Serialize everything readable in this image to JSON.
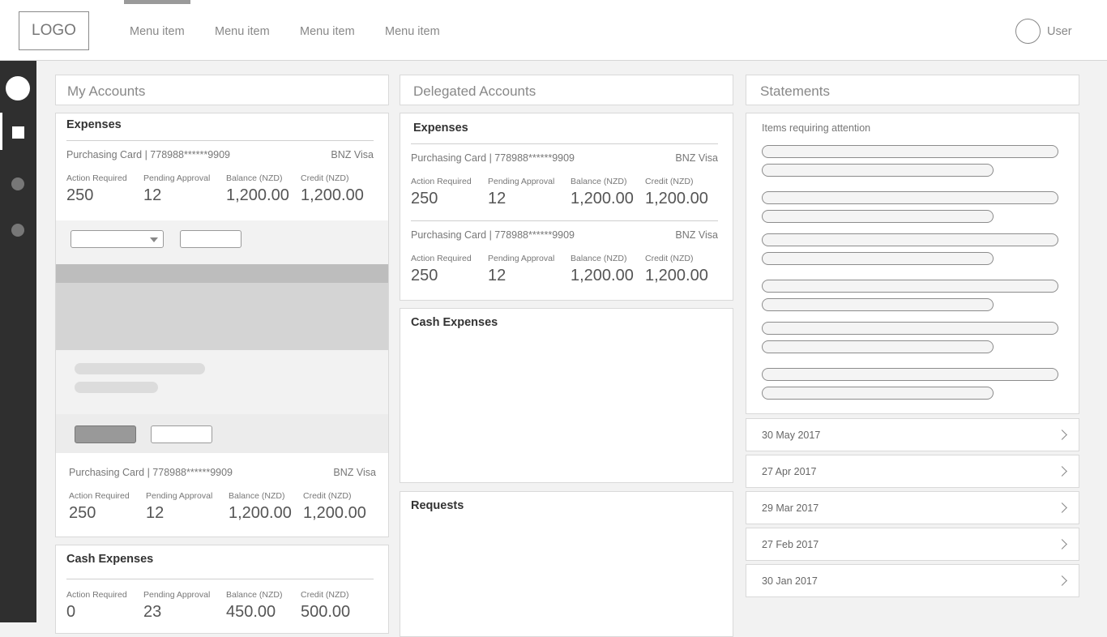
{
  "header": {
    "logo": "LOGO",
    "menu": [
      "Menu item",
      "Menu item",
      "Menu item",
      "Menu item"
    ],
    "user": "User"
  },
  "my_accounts": {
    "title": "My Accounts",
    "expenses": {
      "title": "Expenses",
      "cards": [
        {
          "name": "Purchasing Card | 778988******9909",
          "brand": "BNZ Visa",
          "labels": [
            "Action Required",
            "Pending Approval",
            "Balance (NZD)",
            "Credit (NZD)"
          ],
          "values": [
            "250",
            "12",
            "1,200.00",
            "1,200.00"
          ]
        },
        {
          "name": "Purchasing Card | 778988******9909",
          "brand": "BNZ Visa",
          "labels": [
            "Action Required",
            "Pending Approval",
            "Balance (NZD)",
            "Credit (NZD)"
          ],
          "values": [
            "250",
            "12",
            "1,200.00",
            "1,200.00"
          ]
        }
      ]
    },
    "cash": {
      "title": "Cash Expenses",
      "labels": [
        "Action Required",
        "Pending Approval",
        "Balance (NZD)",
        "Credit (NZD)"
      ],
      "values": [
        "0",
        "23",
        "450.00",
        "500.00"
      ]
    }
  },
  "delegated": {
    "title": "Delegated Accounts",
    "expenses": {
      "title": "Expenses",
      "cards": [
        {
          "name": "Purchasing Card | 778988******9909",
          "brand": "BNZ Visa",
          "labels": [
            "Action Required",
            "Pending Approval",
            "Balance (NZD)",
            "Credit (NZD)"
          ],
          "values": [
            "250",
            "12",
            "1,200.00",
            "1,200.00"
          ]
        },
        {
          "name": "Purchasing Card | 778988******9909",
          "brand": "BNZ Visa",
          "labels": [
            "Action Required",
            "Pending Approval",
            "Balance (NZD)",
            "Credit (NZD)"
          ],
          "values": [
            "250",
            "12",
            "1,200.00",
            "1,200.00"
          ]
        }
      ]
    },
    "cash_title": "Cash Expenses",
    "requests_title": "Requests"
  },
  "statements": {
    "title": "Statements",
    "attention_label": "Items requiring attention",
    "dates": [
      "30 May 2017",
      "27 Apr 2017",
      "29 Mar 2017",
      "27 Feb 2017",
      "30 Jan 2017"
    ]
  }
}
